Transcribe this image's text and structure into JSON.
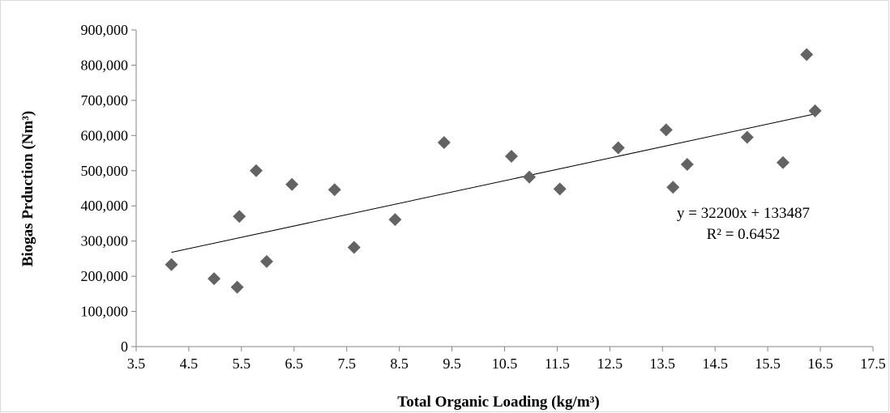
{
  "chart_data": {
    "type": "scatter",
    "title": "",
    "xlabel": "Total Organic Loading (kg/m³)",
    "ylabel": "Biogas Prduction (Nm³)",
    "xlim": [
      3.5,
      17.5
    ],
    "ylim": [
      0,
      900000
    ],
    "x_ticks": [
      3.5,
      4.5,
      5.5,
      6.5,
      7.5,
      8.5,
      9.5,
      10.5,
      11.5,
      12.5,
      13.5,
      14.5,
      15.5,
      16.5,
      17.5
    ],
    "y_ticks": [
      0,
      100000,
      200000,
      300000,
      400000,
      500000,
      600000,
      700000,
      800000,
      900000
    ],
    "x_tick_labels": [
      "3.5",
      "4.5",
      "5.5",
      "6.5",
      "7.5",
      "8.5",
      "9.5",
      "10.5",
      "11.5",
      "12.5",
      "13.5",
      "14.5",
      "15.5",
      "16.5",
      "17.5"
    ],
    "y_tick_labels": [
      "0",
      "100,000",
      "200,000",
      "300,000",
      "400,000",
      "500,000",
      "600,000",
      "700,000",
      "800,000",
      "900,000"
    ],
    "grid": false,
    "legend": "none",
    "marker": "diamond",
    "marker_color": "#636363",
    "trendline_color": "#000000",
    "series": [
      {
        "x": [
          4.17,
          4.98,
          5.42,
          5.46,
          5.78,
          5.98,
          6.46,
          7.27,
          7.64,
          8.42,
          9.35,
          10.63,
          10.97,
          11.55,
          12.66,
          13.57,
          13.7,
          13.97,
          15.11,
          15.79,
          16.24,
          16.4
        ],
        "y": [
          233000,
          193000,
          169000,
          370000,
          500000,
          242000,
          461000,
          446000,
          282000,
          361000,
          580000,
          541000,
          482000,
          448000,
          565000,
          616000,
          453000,
          518000,
          595000,
          523000,
          830000,
          670000
        ]
      }
    ],
    "trendline": {
      "type": "linear",
      "slope": 32200,
      "intercept": 133487,
      "x_range": [
        4.17,
        16.4
      ]
    },
    "annotations": {
      "equation": "y = 32200x + 133487",
      "r_squared": "R² = 0.6452"
    }
  }
}
